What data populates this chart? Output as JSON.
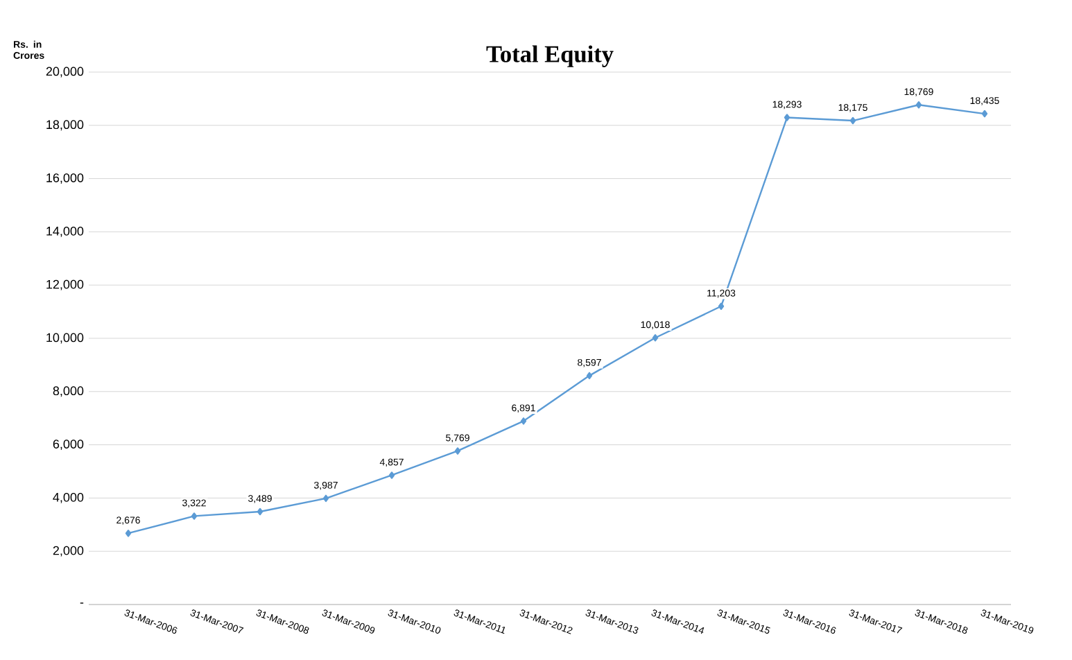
{
  "chart_data": {
    "type": "line",
    "title": "Total Equity",
    "ylabel": "Rs. in Crores",
    "categories": [
      "31-Mar-2006",
      "31-Mar-2007",
      "31-Mar-2008",
      "31-Mar-2009",
      "31-Mar-2010",
      "31-Mar-2011",
      "31-Mar-2012",
      "31-Mar-2013",
      "31-Mar-2014",
      "31-Mar-2015",
      "31-Mar-2016",
      "31-Mar-2017",
      "31-Mar-2018",
      "31-Mar-2019"
    ],
    "values": [
      2676,
      3322,
      3489,
      3987,
      4857,
      5769,
      6891,
      8597,
      10018,
      11203,
      18293,
      18175,
      18769,
      18435
    ],
    "color": "#5b9bd5",
    "ylim": [
      0,
      20000
    ],
    "yticks": [
      {
        "value": 0,
        "label": "-"
      },
      {
        "value": 2000,
        "label": "2,000"
      },
      {
        "value": 4000,
        "label": "4,000"
      },
      {
        "value": 6000,
        "label": "6,000"
      },
      {
        "value": 8000,
        "label": "8,000"
      },
      {
        "value": 10000,
        "label": "10,000"
      },
      {
        "value": 12000,
        "label": "12,000"
      },
      {
        "value": 14000,
        "label": "14,000"
      },
      {
        "value": 16000,
        "label": "16,000"
      },
      {
        "value": 18000,
        "label": "18,000"
      },
      {
        "value": 20000,
        "label": "20,000"
      }
    ],
    "value_labels": [
      "2,676",
      "3,322",
      "3,489",
      "3,987",
      "4,857",
      "5,769",
      "6,891",
      "8,597",
      "10,018",
      "11,203",
      "18,293",
      "18,175",
      "18,769",
      "18,435"
    ],
    "grid": "y",
    "marker": "diamond",
    "line_style": "solid"
  }
}
